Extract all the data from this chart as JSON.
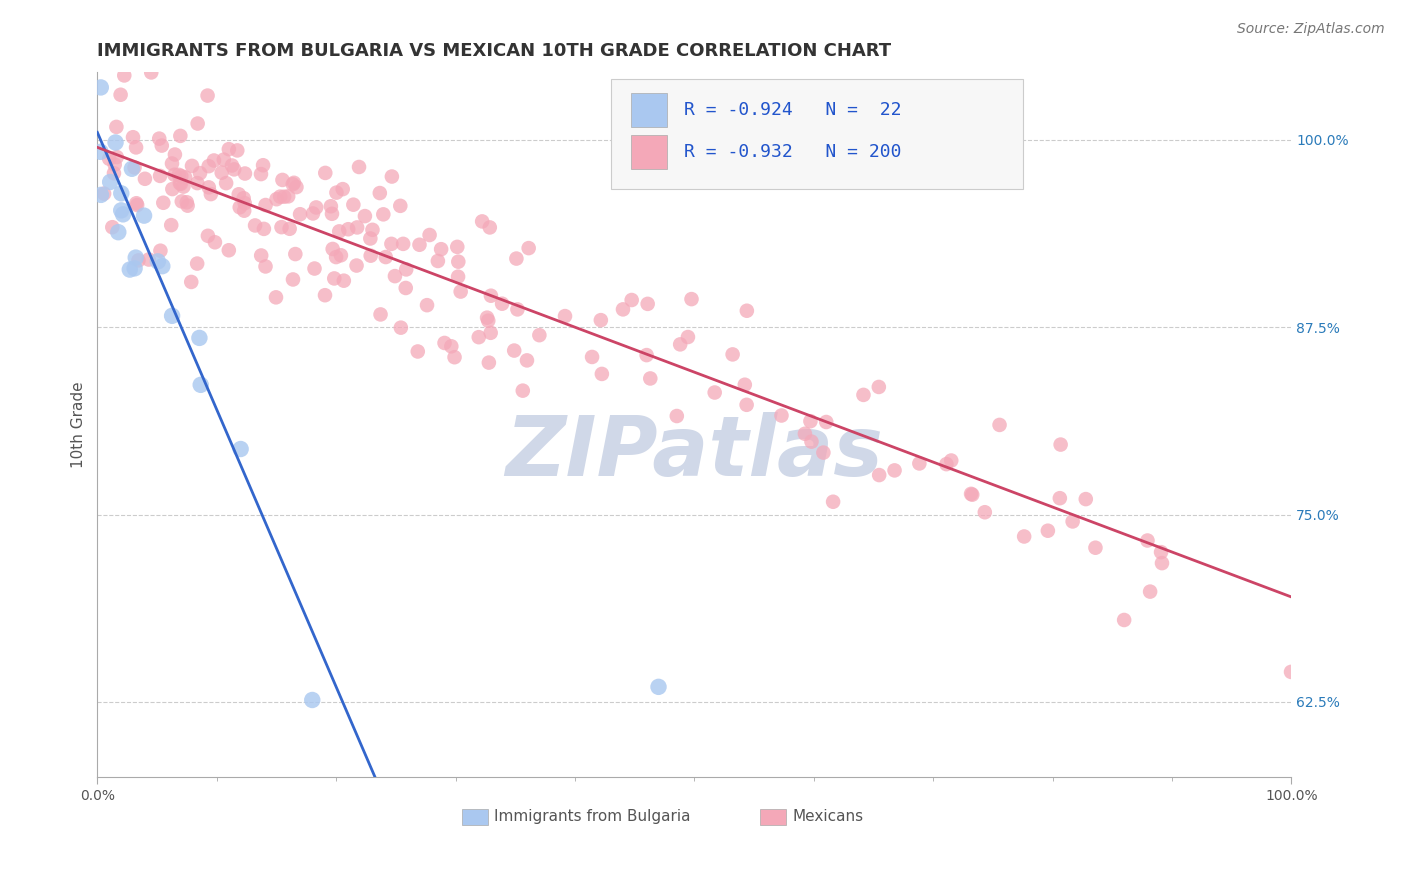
{
  "title": "IMMIGRANTS FROM BULGARIA VS MEXICAN 10TH GRADE CORRELATION CHART",
  "source": "Source: ZipAtlas.com",
  "ylabel": "10th Grade",
  "right_yticks": [
    1.0,
    0.875,
    0.75,
    0.625
  ],
  "right_yticklabels": [
    "100.0%",
    "87.5%",
    "75.0%",
    "62.5%"
  ],
  "watermark": "ZIPatlas",
  "bulgaria_R": -0.924,
  "bulgaria_N": 22,
  "mexico_R": -0.932,
  "mexico_N": 200,
  "bulgaria_color": "#aac8f0",
  "mexico_color": "#f4a8b8",
  "bulgaria_line_color": "#3366cc",
  "mexico_line_color": "#cc4466",
  "bg_line_intercept": 1.005,
  "bg_line_slope": -1.85,
  "mx_line_intercept": 0.995,
  "mx_line_slope": -0.3,
  "xlim": [
    0.0,
    1.0
  ],
  "ylim": [
    0.575,
    1.045
  ],
  "bg_color": "#ffffff",
  "grid_color": "#cccccc",
  "title_color": "#333333",
  "title_fontsize": 13,
  "source_fontsize": 10,
  "axis_label_fontsize": 11,
  "tick_fontsize": 10,
  "watermark_fontsize": 60,
  "watermark_color": "#d0d8e8",
  "legend_fontsize": 13,
  "legend_value_color": "#2255cc"
}
